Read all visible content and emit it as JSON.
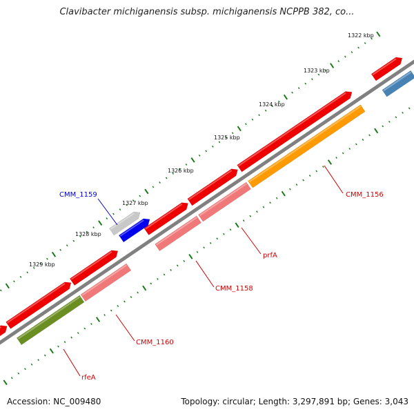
{
  "title": "Clavibacter michiganensis subsp. michiganensis NCPPB 382, co...",
  "footer": {
    "accession": "Accession: NC_009480",
    "summary": "Topology: circular; Length: 3,297,891 bp; Genes: 3,043"
  },
  "ticks": [
    "1322 kbp",
    "1323 kbp",
    "1324 kbp",
    "1325 kbp",
    "1326 kbp",
    "1327 kbp",
    "1328 kbp",
    "1329 kbp"
  ],
  "gene_labels": [
    "CMM_1159",
    "CMM_1156",
    "prfA",
    "CMM_1158",
    "CMM_1160",
    "rfeA"
  ],
  "colors": {
    "cds_red": "#ee0000",
    "cds_pink": "#f07878",
    "cds_orange": "#ff9a00",
    "cds_olive": "#6b8e23",
    "cds_steelblue": "#4682b4",
    "cds_gray": "#c8c8c8",
    "cds_blue": "#0000ee",
    "backbone": "#808080",
    "tick_green": "#1a7a1a",
    "label_red": "#cc0000",
    "label_blue": "#0000cc"
  }
}
